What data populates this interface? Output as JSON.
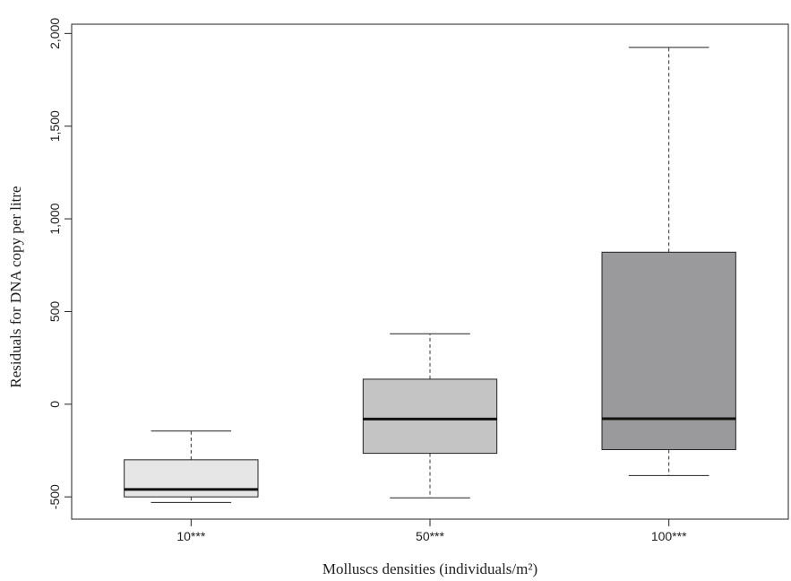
{
  "chart_data": {
    "type": "boxplot",
    "title": "",
    "xlabel": "Molluscs densities (individuals/m²)",
    "ylabel": "Residuals for DNA copy per litre",
    "ylim": [
      -620,
      2050
    ],
    "y_ticks": [
      -500,
      0,
      500,
      1000,
      1500,
      2000
    ],
    "y_tick_labels": [
      "-500",
      "0",
      "500",
      "1,000",
      "1,500",
      "2,000"
    ],
    "grid": false,
    "legend": "none",
    "categories": [
      "10***",
      "50***",
      "100***"
    ],
    "boxes": [
      {
        "category": "10***",
        "whisker_low": -530,
        "q1": -500,
        "median": -460,
        "q3": -300,
        "whisker_high": -145,
        "color": "#e6e6e6"
      },
      {
        "category": "50***",
        "whisker_low": -505,
        "q1": -265,
        "median": -80,
        "q3": 135,
        "whisker_high": 380,
        "color": "#c4c4c4"
      },
      {
        "category": "100***",
        "whisker_low": -385,
        "q1": -245,
        "median": -78,
        "q3": 820,
        "whisker_high": 1925,
        "color": "#9a9a9d"
      }
    ]
  }
}
